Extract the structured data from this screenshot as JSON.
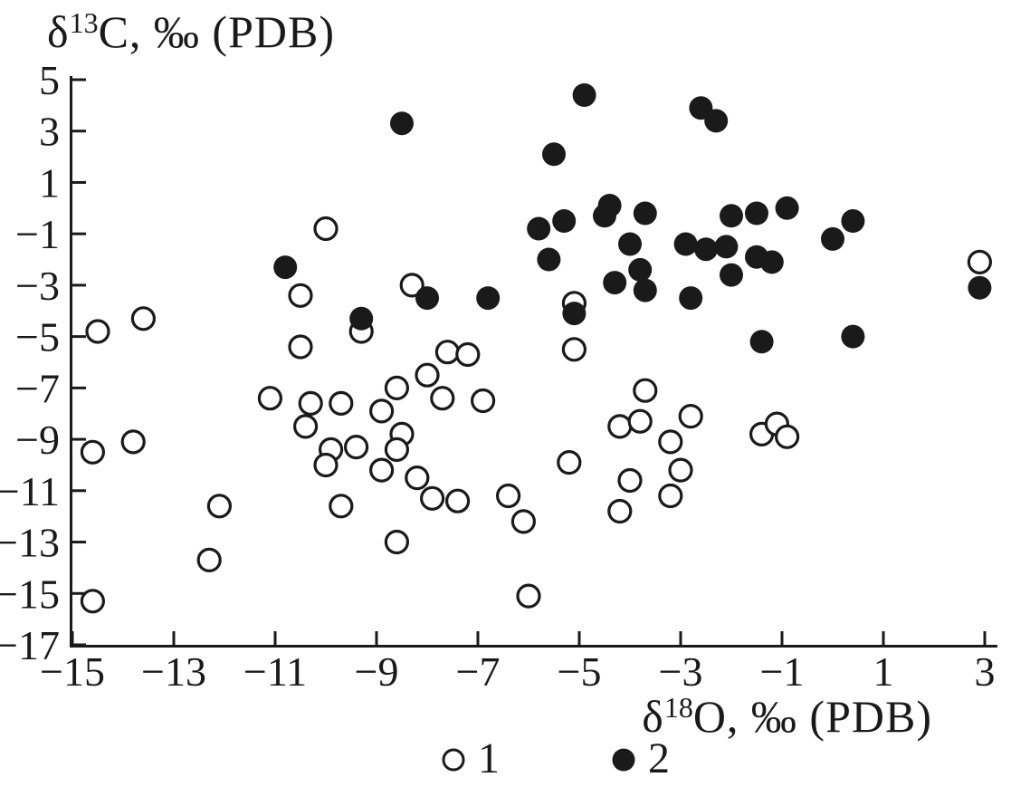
{
  "figure": {
    "y_axis_title": {
      "pre": "δ",
      "sup": "13",
      "post": "C, ‰ (PDB)"
    },
    "x_axis_title": {
      "pre": "δ",
      "sup": "18",
      "post": "O, ‰ (PDB)"
    }
  },
  "legend": {
    "items": [
      {
        "label": "1",
        "marker": "open-circle"
      },
      {
        "label": "2",
        "marker": "filled-circle"
      }
    ]
  },
  "colors": {
    "ink": "#1a1a1a",
    "background": "#ffffff"
  },
  "chart_data": {
    "type": "scatter",
    "title": "",
    "xlabel": "δ18O, ‰ (PDB)",
    "ylabel": "δ13C, ‰ (PDB)",
    "xlim": [
      -15,
      3
    ],
    "ylim": [
      -17,
      5
    ],
    "grid": false,
    "legend_position": "bottom-center",
    "xticks": [
      {
        "v": -15,
        "label": "−15"
      },
      {
        "v": -13,
        "label": "−13"
      },
      {
        "v": -11,
        "label": "−11"
      },
      {
        "v": -9,
        "label": "−9"
      },
      {
        "v": -7,
        "label": "−7"
      },
      {
        "v": -5,
        "label": "−5"
      },
      {
        "v": -3,
        "label": "−3"
      },
      {
        "v": -1,
        "label": "−1"
      },
      {
        "v": 1,
        "label": "1"
      },
      {
        "v": 3,
        "label": "3"
      }
    ],
    "yticks": [
      {
        "v": 5,
        "label": "5"
      },
      {
        "v": 3,
        "label": "3"
      },
      {
        "v": 1,
        "label": "1"
      },
      {
        "v": -1,
        "label": "−1"
      },
      {
        "v": -3,
        "label": "−3"
      },
      {
        "v": -5,
        "label": "−5"
      },
      {
        "v": -7,
        "label": "−7"
      },
      {
        "v": -9,
        "label": "−9"
      },
      {
        "v": -11,
        "label": "−11"
      },
      {
        "v": -13,
        "label": "−13"
      },
      {
        "v": -15,
        "label": "−15"
      },
      {
        "v": -17,
        "label": "−17"
      }
    ],
    "series": [
      {
        "name": "1",
        "marker": "open-circle",
        "points": [
          [
            -10.0,
            -0.8
          ],
          [
            -10.5,
            -3.4
          ],
          [
            -13.6,
            -4.3
          ],
          [
            -14.5,
            -4.8
          ],
          [
            -9.3,
            -4.8
          ],
          [
            -10.5,
            -5.4
          ],
          [
            -8.3,
            -3.0
          ],
          [
            -5.1,
            -3.7
          ],
          [
            -7.6,
            -5.6
          ],
          [
            -7.2,
            -5.7
          ],
          [
            -5.1,
            -5.5
          ],
          [
            -8.0,
            -6.5
          ],
          [
            -8.6,
            -7.0
          ],
          [
            -7.7,
            -7.4
          ],
          [
            -6.9,
            -7.5
          ],
          [
            -8.9,
            -7.9
          ],
          [
            -11.1,
            -7.4
          ],
          [
            -10.3,
            -7.6
          ],
          [
            -9.7,
            -7.6
          ],
          [
            -10.4,
            -8.5
          ],
          [
            -14.6,
            -9.5
          ],
          [
            -13.8,
            -9.1
          ],
          [
            -9.9,
            -9.4
          ],
          [
            -9.4,
            -9.3
          ],
          [
            -10.0,
            -10.0
          ],
          [
            -8.5,
            -8.8
          ],
          [
            -8.6,
            -9.4
          ],
          [
            -8.9,
            -10.2
          ],
          [
            -8.2,
            -10.5
          ],
          [
            -7.9,
            -11.3
          ],
          [
            -7.4,
            -11.4
          ],
          [
            -6.4,
            -11.2
          ],
          [
            -6.1,
            -12.2
          ],
          [
            -8.6,
            -13.0
          ],
          [
            -12.1,
            -11.6
          ],
          [
            -12.3,
            -13.7
          ],
          [
            -14.6,
            -15.3
          ],
          [
            -6.0,
            -15.1
          ],
          [
            -9.7,
            -11.6
          ],
          [
            -5.2,
            -9.9
          ],
          [
            -4.2,
            -8.5
          ],
          [
            -3.8,
            -8.3
          ],
          [
            -3.7,
            -7.1
          ],
          [
            -2.8,
            -8.1
          ],
          [
            -3.2,
            -9.1
          ],
          [
            -1.4,
            -8.8
          ],
          [
            -1.1,
            -8.4
          ],
          [
            -0.9,
            -8.9
          ],
          [
            -3.0,
            -10.2
          ],
          [
            -3.2,
            -11.2
          ],
          [
            -4.0,
            -10.6
          ],
          [
            -4.2,
            -11.8
          ],
          [
            2.9,
            -2.1
          ]
        ]
      },
      {
        "name": "2",
        "marker": "filled-circle",
        "points": [
          [
            -4.9,
            4.4
          ],
          [
            -8.5,
            3.3
          ],
          [
            -2.6,
            3.9
          ],
          [
            -2.3,
            3.4
          ],
          [
            -5.5,
            2.1
          ],
          [
            -4.4,
            0.1
          ],
          [
            -4.5,
            -0.3
          ],
          [
            -3.7,
            -0.2
          ],
          [
            -5.8,
            -0.8
          ],
          [
            -5.3,
            -0.5
          ],
          [
            -4.0,
            -1.4
          ],
          [
            -2.9,
            -1.4
          ],
          [
            -5.6,
            -2.0
          ],
          [
            -4.3,
            -2.9
          ],
          [
            -3.8,
            -2.4
          ],
          [
            -3.7,
            -3.2
          ],
          [
            -2.8,
            -3.5
          ],
          [
            -10.8,
            -2.3
          ],
          [
            -9.3,
            -4.3
          ],
          [
            -8.0,
            -3.5
          ],
          [
            -6.8,
            -3.5
          ],
          [
            -5.1,
            -4.1
          ],
          [
            -2.0,
            -0.3
          ],
          [
            -1.5,
            -0.2
          ],
          [
            -0.9,
            0.0
          ],
          [
            0.4,
            -0.5
          ],
          [
            0.0,
            -1.2
          ],
          [
            -2.5,
            -1.6
          ],
          [
            -2.1,
            -1.5
          ],
          [
            -2.0,
            -2.6
          ],
          [
            -1.5,
            -1.9
          ],
          [
            -1.2,
            -2.1
          ],
          [
            -1.4,
            -5.2
          ],
          [
            0.4,
            -5.0
          ],
          [
            2.9,
            -3.1
          ]
        ]
      }
    ]
  }
}
